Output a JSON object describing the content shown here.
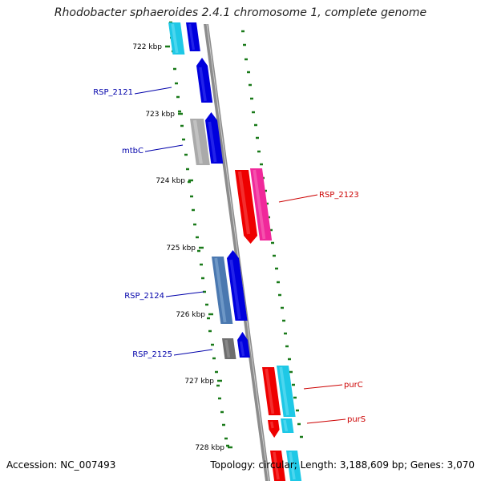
{
  "title": "Rhodobacter sphaeroides 2.4.1 chromosome 1, complete genome",
  "footer": {
    "accession": "Accession: NC_007493",
    "stats": "Topology: circular; Length: 3,188,609 bp; Genes: 3,070"
  },
  "ticks": [
    "722 kbp",
    "723 kbp",
    "724 kbp",
    "725 kbp",
    "726 kbp",
    "727 kbp",
    "728 kbp"
  ],
  "genes": [
    {
      "name": "RSP_2121",
      "strand": "reverse",
      "color": "#0000cc",
      "label_color": "#0000aa"
    },
    {
      "name": "mtbC",
      "strand": "reverse",
      "color": "#0000cc",
      "label_color": "#0000aa"
    },
    {
      "name": "RSP_2123",
      "strand": "forward",
      "color": "#ee0000",
      "label_color": "#cc0000"
    },
    {
      "name": "RSP_2124",
      "strand": "reverse",
      "color": "#0000cc",
      "label_color": "#0000aa"
    },
    {
      "name": "RSP_2125",
      "strand": "reverse",
      "color": "#0000cc",
      "label_color": "#0000aa"
    },
    {
      "name": "purC",
      "strand": "forward",
      "color": "#ee0000",
      "label_color": "#cc0000"
    },
    {
      "name": "purS",
      "strand": "forward",
      "color": "#ee0000",
      "label_color": "#cc0000"
    }
  ],
  "colors": {
    "backbone": "#8c8c8c",
    "gc_dots": "#1a7a1a",
    "cyan": "#1ec8e6",
    "magenta": "#f0289a",
    "gray": "#aaaaaa",
    "steelblue": "#4a78b0",
    "darkgray": "#6e6e6e"
  }
}
